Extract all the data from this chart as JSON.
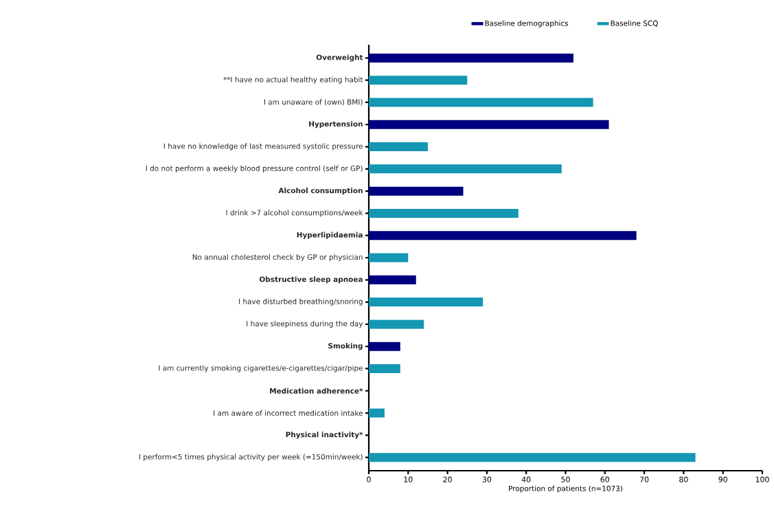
{
  "chart_data": {
    "type": "bar",
    "orientation": "horizontal",
    "xlabel": "Proportion of patients (n=1073)",
    "categories": [
      "Overweight",
      "**I have no actual healthy eating habit",
      "I am unaware of (own) BMI)",
      "Hypertension",
      "I have no knowledge of last measured systolic pressure",
      "I do not perform a weekly blood pressure control (self or GP)",
      "Alcohol consumption",
      "I drink >7 alcohol consumptions/week",
      "Hyperlipidaemia",
      "No annual cholesterol check by GP or physician",
      "Obstructive sleep apnoea",
      "I have disturbed breathing/snoring",
      "I have sleepiness during the day",
      "Smoking",
      "I am currently smoking cigarettes/e-cigarettes/cigar/pipe",
      "Medication adherence*",
      "I am aware of incorrect medication intake",
      "Physical inactivity*",
      "I perform<5 times physical activity per week (=150min/week)"
    ],
    "series": [
      {
        "name": "Baseline demographics",
        "color": "#000080",
        "values": [
          52,
          null,
          null,
          61,
          null,
          null,
          24,
          null,
          68,
          null,
          12,
          null,
          null,
          8,
          null,
          null,
          null,
          null,
          null
        ]
      },
      {
        "name": "Baseline SCQ",
        "color": "#1497b3",
        "values": [
          null,
          25,
          57,
          null,
          15,
          49,
          null,
          38,
          null,
          10,
          null,
          29,
          14,
          null,
          8,
          null,
          4,
          null,
          83
        ]
      }
    ],
    "xlim": [
      0,
      100
    ],
    "xticks": [
      0,
      10,
      20,
      30,
      40,
      50,
      60,
      70,
      80,
      90,
      100
    ],
    "legend": "top",
    "grid": false
  }
}
